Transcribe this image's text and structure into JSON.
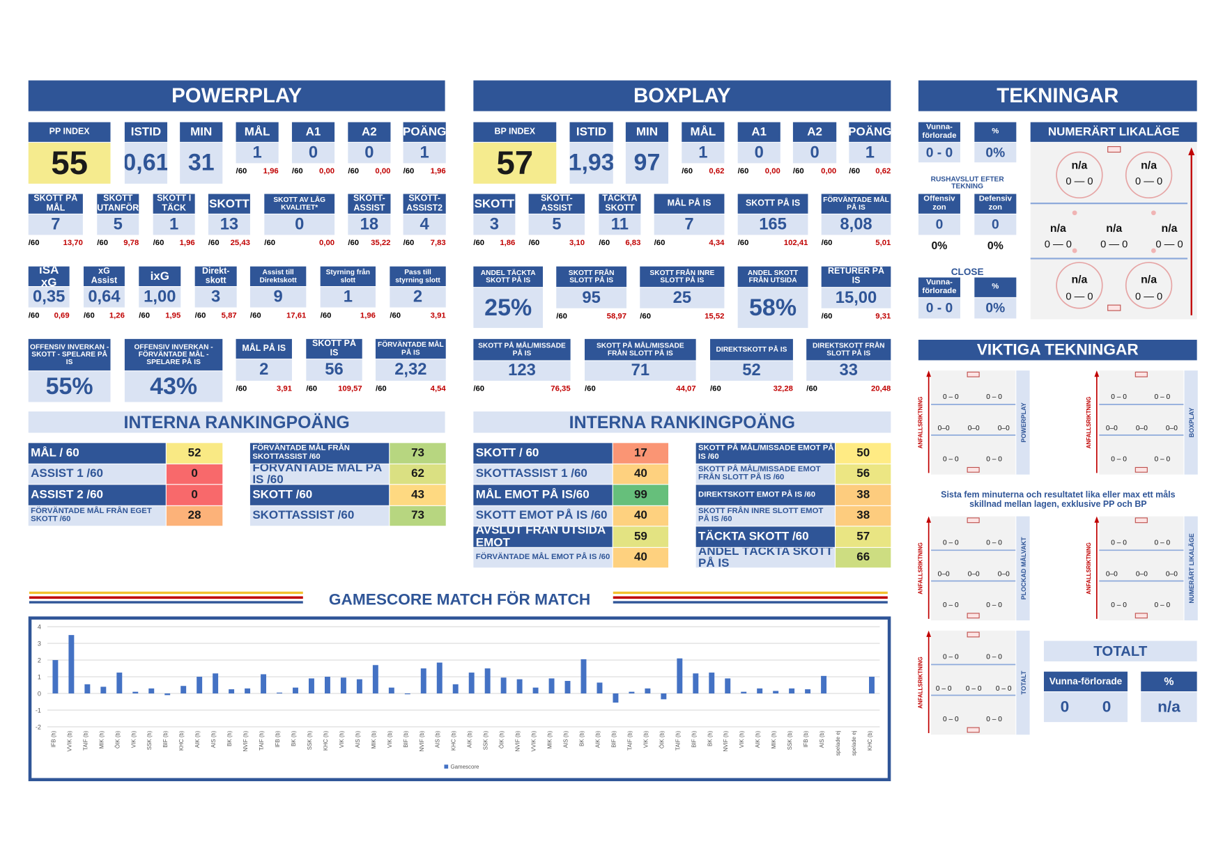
{
  "per_unit": "/60",
  "powerplay": {
    "title": "POWERPLAY",
    "rows": [
      [
        {
          "label": "PP INDEX",
          "value": "55"
        },
        {
          "label": "ISTID",
          "value": "0,61"
        },
        {
          "label": "MIN",
          "value": "31"
        },
        {
          "label": "MÅL",
          "value": "1",
          "rate": "1,96"
        },
        {
          "label": "A1",
          "value": "0",
          "rate": "0,00"
        },
        {
          "label": "A2",
          "value": "0",
          "rate": "0,00"
        },
        {
          "label": "POÄNG",
          "value": "1",
          "rate": "1,96"
        }
      ],
      [
        {
          "label": "SKOTT PÅ MÅL",
          "value": "7",
          "rate": "13,70"
        },
        {
          "label": "SKOTT UTANFÖR",
          "value": "5",
          "rate": "9,78"
        },
        {
          "label": "SKOTT I TÄCK",
          "value": "1",
          "rate": "1,96"
        },
        {
          "label": "SKOTT",
          "value": "13",
          "rate": "25,43"
        },
        {
          "label": "SKOTT AV LÅG KVALITET*",
          "value": "0",
          "rate": "0,00"
        },
        {
          "label": "SKOTT-ASSIST",
          "value": "18",
          "rate": "35,22"
        },
        {
          "label": "SKOTT-ASSIST2",
          "value": "4",
          "rate": "7,83"
        }
      ],
      [
        {
          "label": "iSA xG",
          "value": "0,35",
          "rate": "0,69"
        },
        {
          "label": "xG Assist",
          "value": "0,64",
          "rate": "1,26"
        },
        {
          "label": "ixG",
          "value": "1,00",
          "rate": "1,95"
        },
        {
          "label": "Direkt-skott",
          "value": "3",
          "rate": "5,87"
        },
        {
          "label": "Assist till Direktskott",
          "value": "9",
          "rate": "17,61"
        },
        {
          "label": "Styrning från slott",
          "value": "1",
          "rate": "1,96"
        },
        {
          "label": "Pass till styrning slott",
          "value": "2",
          "rate": "3,91"
        }
      ],
      [
        {
          "label": "OFFENSIV INVERKAN - SKOTT - SPELARE PÅ IS",
          "value": "55%"
        },
        {
          "label": "OFFENSIV INVERKAN - FÖRVÄNTADE MÅL - SPELARE PÅ IS",
          "value": "43%"
        },
        {
          "label": "MÅL PÅ IS",
          "value": "2",
          "rate": "3,91"
        },
        {
          "label": "SKOTT PÅ IS",
          "value": "56",
          "rate": "109,57"
        },
        {
          "label": "FÖRVÄNTADE MÅL PÅ IS",
          "value": "2,32",
          "rate": "4,54"
        }
      ]
    ],
    "ranking": {
      "title": "INTERNA RANKINGPOÄNG",
      "left": [
        {
          "label": "MÅL / 60",
          "value": 52
        },
        {
          "label": "ASSIST 1 /60",
          "value": 0
        },
        {
          "label": "ASSIST 2 /60",
          "value": 0
        },
        {
          "label": "FÖRVÄNTADE MÅL FRÅN EGET SKOTT /60",
          "value": 28
        }
      ],
      "right": [
        {
          "label": "FÖRVÄNTADE MÅL FRÅN SKOTTASSIST /60",
          "value": 73
        },
        {
          "label": "FÖRVÄNTADE MÅL PÅ IS /60",
          "value": 62
        },
        {
          "label": "SKOTT /60",
          "value": 43
        },
        {
          "label": "SKOTTASSIST /60",
          "value": 73
        }
      ]
    }
  },
  "boxplay": {
    "title": "BOXPLAY",
    "rows": [
      [
        {
          "label": "BP INDEX",
          "value": "57"
        },
        {
          "label": "ISTID",
          "value": "1,93"
        },
        {
          "label": "MIN",
          "value": "97"
        },
        {
          "label": "MÅL",
          "value": "1",
          "rate": "0,62"
        },
        {
          "label": "A1",
          "value": "0",
          "rate": "0,00"
        },
        {
          "label": "A2",
          "value": "0",
          "rate": "0,00"
        },
        {
          "label": "POÄNG",
          "value": "1",
          "rate": "0,62"
        }
      ],
      [
        {
          "label": "SKOTT",
          "value": "3",
          "rate": "1,86"
        },
        {
          "label": "SKOTT-ASSIST",
          "value": "5",
          "rate": "3,10"
        },
        {
          "label": "TÄCKTA SKOTT",
          "value": "11",
          "rate": "6,83"
        },
        {
          "label": "MÅL PÅ IS",
          "value": "7",
          "rate": "4,34"
        },
        {
          "label": "SKOTT PÅ IS",
          "value": "165",
          "rate": "102,41"
        },
        {
          "label": "FÖRVÄNTADE MÅL PÅ IS",
          "value": "8,08",
          "rate": "5,01"
        }
      ],
      [
        {
          "label": "ANDEL TÄCKTA SKOTT PÅ IS",
          "value": "25%"
        },
        {
          "label": "SKOTT FRÅN SLOTT PÅ IS",
          "value": "95",
          "rate": "58,97"
        },
        {
          "label": "SKOTT FRÅN INRE SLOTT PÅ IS",
          "value": "25",
          "rate": "15,52"
        },
        {
          "label": "ANDEL SKOTT FRÅN UTSIDA",
          "value": "58%"
        },
        {
          "label": "RETURER PÅ IS",
          "value": "15,00",
          "rate": "9,31"
        }
      ],
      [
        {
          "label": "SKOTT PÅ MÅL/MISSADE PÅ IS",
          "value": "123",
          "rate": "76,35"
        },
        {
          "label": "SKOTT PÅ MÅL/MISSADE FRÅN SLOTT PÅ IS",
          "value": "71",
          "rate": "44,07"
        },
        {
          "label": "DIREKTSKOTT PÅ IS",
          "value": "52",
          "rate": "32,28"
        },
        {
          "label": "DIREKTSKOTT FRÅN SLOTT PÅ IS",
          "value": "33",
          "rate": "20,48"
        }
      ]
    ],
    "ranking": {
      "title": "INTERNA RANKINGPOÄNG",
      "left": [
        {
          "label": "SKOTT / 60",
          "value": 17
        },
        {
          "label": "SKOTTASSIST 1 /60",
          "value": 40
        },
        {
          "label": "MÅL EMOT PÅ IS/60",
          "value": 99
        },
        {
          "label": "SKOTT EMOT PÅ IS /60",
          "value": 40
        },
        {
          "label": "AVSLUT FRÅN UTSIDA EMOT",
          "value": 59
        },
        {
          "label": "FÖRVÄNTADE MÅL EMOT PÅ IS /60",
          "value": 40
        }
      ],
      "right": [
        {
          "label": "SKOTT PÅ MÅL/MISSADE EMOT PÅ IS /60",
          "value": 50
        },
        {
          "label": "SKOTT PÅ MÅL/MISSADE EMOT FRÅN SLOTT PÅ IS /60",
          "value": 56
        },
        {
          "label": "DIREKTSKOTT EMOT PÅ IS /60",
          "value": 38
        },
        {
          "label": "SKOTT FRÅN INRE SLOTT EMOT PÅ IS /60",
          "value": 38
        },
        {
          "label": "TÄCKTA SKOTT /60",
          "value": 57
        },
        {
          "label": "ANDEL TÄCKTA SKOTT PÅ IS",
          "value": 66
        }
      ]
    }
  },
  "tekningar": {
    "title": "TEKNINGAR",
    "top": [
      {
        "label": "Vunna-förlorade",
        "value": "0 - 0"
      },
      {
        "label": "%",
        "value": "0%"
      }
    ],
    "rush_title": "RUSHAVSLUT EFTER TEKNING",
    "zones": [
      {
        "label": "Offensiv zon",
        "value": "0",
        "pct": "0%"
      },
      {
        "label": "Defensiv zon",
        "value": "0",
        "pct": "0%"
      }
    ],
    "close_title": "CLOSE",
    "close": [
      {
        "label": "Vunna-förlorade",
        "value": "0 - 0"
      },
      {
        "label": "%",
        "value": "0%"
      }
    ],
    "numerart": {
      "title": "NUMERÄRT LIKALÄGE",
      "spots": [
        {
          "label": "n/a",
          "score": "0 — 0"
        },
        {
          "label": "n/a",
          "score": "0 — 0"
        },
        {
          "label": "n/a",
          "score": "0 — 0"
        },
        {
          "label": "n/a",
          "score": "0 — 0"
        },
        {
          "label": "n/a",
          "score": "0 — 0"
        },
        {
          "label": "n/a",
          "score": "0 — 0"
        },
        {
          "label": "n/a",
          "score": "0 — 0"
        }
      ]
    }
  },
  "viktiga": {
    "title": "VIKTIGA TEKNINGAR",
    "axis_label": "ANFALLSRIKTNING",
    "note": "Sista fem minuterna och resultatet lika eller max ett måls skillnad mellan lagen, exklusive PP och BP",
    "rinks": [
      {
        "side": "POWERPLAY",
        "scores": [
          "0 – 0",
          "0 – 0",
          "0–0",
          "0–0",
          "0–0",
          "0 – 0",
          "0 – 0"
        ]
      },
      {
        "side": "BOXPLAY",
        "scores": [
          "0 – 0",
          "0 – 0",
          "0–0",
          "0–0",
          "0–0",
          "0 – 0",
          "0 – 0"
        ]
      },
      {
        "side": "PLOCKAD MÅLVAKT",
        "scores": [
          "0 – 0",
          "0 – 0",
          "0–0",
          "0–0",
          "0–0",
          "0 – 0",
          "0 – 0"
        ]
      },
      {
        "side": "NUMERÄRT LIKALÄGE",
        "scores": [
          "0 – 0",
          "0 – 0",
          "0–0",
          "0–0",
          "0–0",
          "0 – 0",
          "0 – 0"
        ]
      },
      {
        "side": "TOTALT",
        "scores": [
          "0 – 0",
          "0 – 0",
          "0 – 0",
          "0 – 0",
          "0 – 0",
          "0 – 0",
          "0 – 0"
        ]
      }
    ],
    "totalt": {
      "title": "TOTALT",
      "wl_label": "Vunna-förlorade",
      "wl": [
        "0",
        "0"
      ],
      "pct_label": "%",
      "pct": "n/a"
    }
  },
  "chart_data": {
    "type": "bar",
    "title": "GAMESCORE MATCH FÖR MATCH",
    "categories": [
      "IFB (h)",
      "VVIK (b)",
      "TAIF (b)",
      "MIK (h)",
      "ÖIK (b)",
      "VIK (h)",
      "SSK (h)",
      "BIF (b)",
      "KHC (b)",
      "AIK (h)",
      "AIS (h)",
      "BK (h)",
      "NVIF (h)",
      "TAIF (h)",
      "IFB (b)",
      "BK (h)",
      "SSK (h)",
      "KHC (h)",
      "VIK (h)",
      "AIS (h)",
      "MIK (b)",
      "VIK (b)",
      "BIF (b)",
      "NVIF (b)",
      "AIS (b)",
      "KHC (b)",
      "AIK (b)",
      "SSK (h)",
      "ÖIK (h)",
      "NVIF (b)",
      "VVIK (h)",
      "MIK (h)",
      "AIS (h)",
      "BK (b)",
      "AIK (b)",
      "BIF (b)",
      "TAIF (b)",
      "VIK (b)",
      "ÖIK (b)",
      "TAIF (h)",
      "BIF (h)",
      "BK (h)",
      "NVIF (h)",
      "VIK (h)",
      "AIK (h)",
      "MIK (h)",
      "SSK (b)",
      "IFB (b)",
      "AIS (b)",
      "spelade ej",
      "spelade ej",
      "KHC (b)"
    ],
    "series": [
      {
        "name": "Gamescore",
        "color": "#4472c4",
        "values": [
          2.0,
          3.5,
          0.55,
          0.4,
          1.25,
          0.1,
          0.3,
          -0.1,
          0.45,
          1.0,
          1.2,
          0.25,
          0.3,
          1.15,
          0.05,
          0.35,
          0.9,
          1.0,
          0.95,
          0.85,
          1.7,
          0.35,
          -0.05,
          1.5,
          1.85,
          0.55,
          1.25,
          1.5,
          0.95,
          0.85,
          0.35,
          0.9,
          0.75,
          2.05,
          0.65,
          -0.55,
          0.1,
          0.3,
          -0.35,
          2.1,
          1.2,
          1.25,
          0.9,
          0.1,
          0.3,
          0.15,
          0.3,
          0.25,
          1.05,
          null,
          null,
          1.0
        ]
      }
    ],
    "ylim": [
      -2,
      4
    ],
    "yticks": [
      -2,
      -1,
      0,
      1,
      2,
      3,
      4
    ],
    "grid": true,
    "legend": "bottom"
  }
}
